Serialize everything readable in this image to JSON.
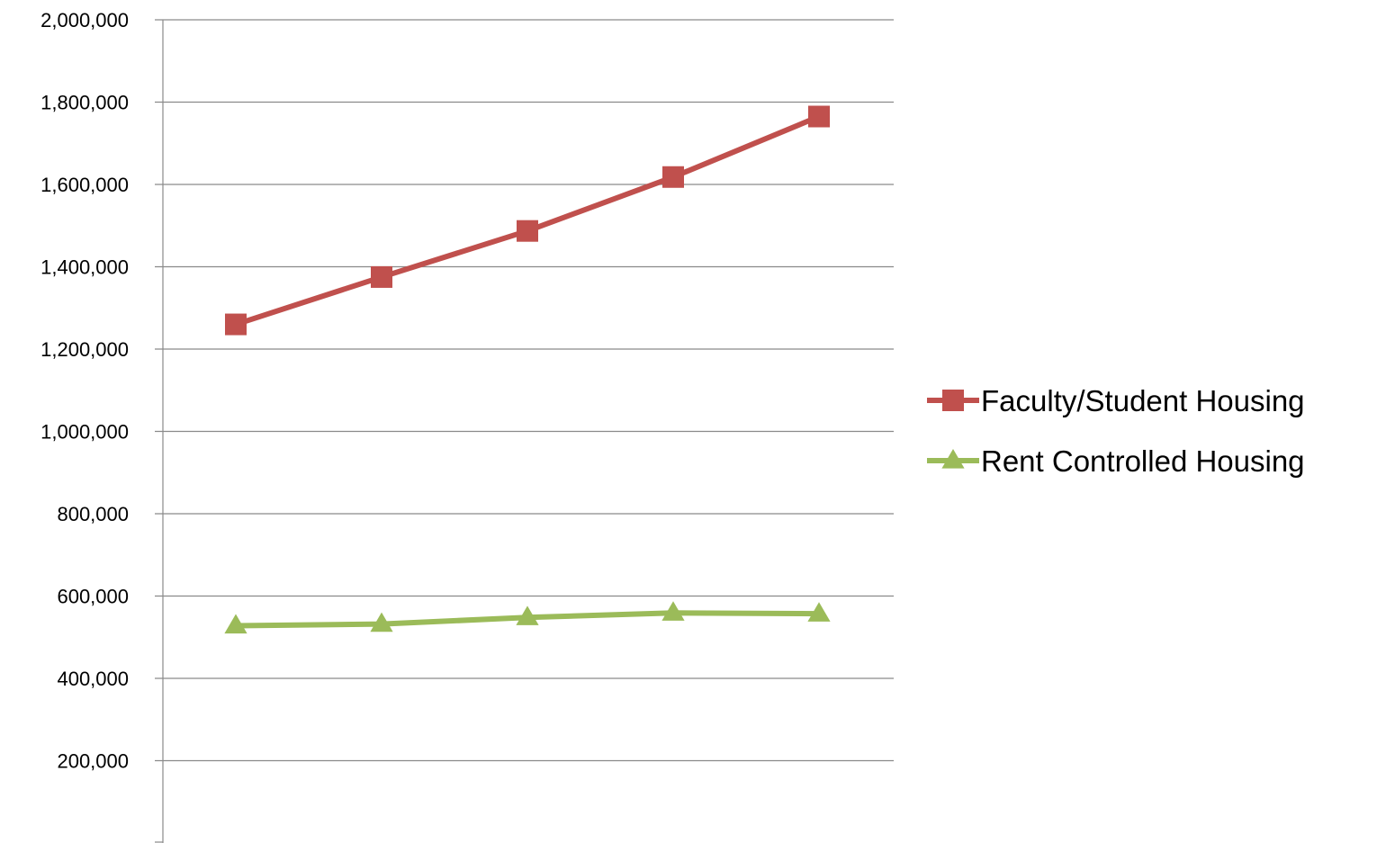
{
  "chart_data": {
    "type": "line",
    "title": "",
    "xlabel": "",
    "ylabel": "",
    "x": [
      1,
      2,
      3,
      4,
      5
    ],
    "ylim": [
      0,
      2000000
    ],
    "yticks": [
      200000,
      400000,
      600000,
      800000,
      1000000,
      1200000,
      1400000,
      1600000,
      1800000,
      2000000
    ],
    "ytick_labels": [
      "200,000",
      "400,000",
      "600,000",
      "800,000",
      "1,000,000",
      "1,200,000",
      "1,400,000",
      "1,600,000",
      "1,800,000",
      "2,000,000"
    ],
    "grid": true,
    "legend": "right",
    "series": [
      {
        "name": "Faculty/Student Housing",
        "color": "#c0504d",
        "marker": "square",
        "values": [
          1260000,
          1375000,
          1487000,
          1618000,
          1765000
        ]
      },
      {
        "name": "Rent Controlled Housing",
        "color": "#9bbb59",
        "marker": "triangle",
        "values": [
          528000,
          532000,
          548000,
          559000,
          557000
        ]
      }
    ]
  }
}
